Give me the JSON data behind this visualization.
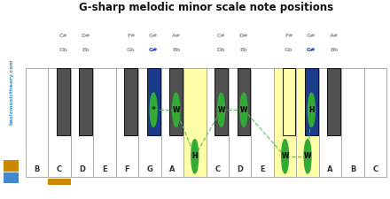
{
  "title": "G-sharp melodic minor scale note positions",
  "white_keys": [
    "B",
    "C",
    "D",
    "E",
    "F",
    "G",
    "A",
    "B",
    "C",
    "D",
    "E",
    "F",
    "G",
    "A",
    "B",
    "C"
  ],
  "bk_gaps": [
    1,
    2,
    4,
    5,
    6,
    8,
    9,
    11,
    12,
    13
  ],
  "bk_label_final": [
    [
      "C#",
      "Db",
      false,
      false
    ],
    [
      "D#",
      "Eb",
      false,
      false
    ],
    [
      "F#",
      "Gb",
      false,
      false
    ],
    [
      "G#",
      "G#",
      true,
      false
    ],
    [
      "A#",
      "Bb",
      false,
      false
    ],
    [
      "C#",
      "Db",
      false,
      false
    ],
    [
      "D#",
      "Eb",
      false,
      false
    ],
    [
      "F#",
      "Gb",
      false,
      true
    ],
    [
      "G#",
      "G#",
      true,
      false
    ],
    [
      "A#",
      "Bb",
      false,
      false
    ]
  ],
  "yellow_white": [
    7,
    11,
    12
  ],
  "yellow_bk": [
    7
  ],
  "blue_bk": [
    3,
    8
  ],
  "bg_color": "#ffffff",
  "white_key_color": "#ffffff",
  "black_key_color": "#505050",
  "yellow_color": "#ffffaa",
  "blue_color": "#1a3a8a",
  "orange_color": "#cc8800",
  "circle_color": "#33aa33",
  "circle_text_color": "#000000",
  "gray_text_color": "#999999",
  "dark_text_color": "#333333",
  "blue_label_color": "#1a3aaa",
  "sidebar_bg": "#111122",
  "sidebar_text": "#2299ee",
  "sidebar_orange": "#cc8800",
  "sidebar_blue": "#4488cc"
}
